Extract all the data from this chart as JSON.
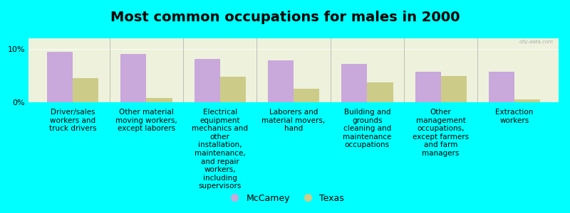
{
  "title": "Most common occupations for males in 2000",
  "background_color": "#00FFFF",
  "plot_bg_color": "#EEF2DC",
  "categories": [
    "Driver/sales\nworkers and\ntruck drivers",
    "Other material\nmoving workers,\nexcept laborers",
    "Electrical\nequipment\nmechanics and\nother\ninstallation,\nmaintenance,\nand repair\nworkers,\nincluding\nsupervisors",
    "Laborers and\nmaterial movers,\nhand",
    "Building and\ngrounds\ncleaning and\nmaintenance\noccupations",
    "Other\nmanagement\noccupations,\nexcept farmers\nand farm\nmanagers",
    "Extraction\nworkers"
  ],
  "mccamey_values": [
    9.5,
    9.0,
    8.2,
    7.8,
    7.2,
    5.8,
    5.8
  ],
  "texas_values": [
    4.5,
    0.8,
    4.8,
    2.5,
    3.8,
    5.0,
    0.5
  ],
  "mccamey_color": "#C9A8DC",
  "texas_color": "#CCCC88",
  "bar_width": 0.35,
  "ylim": [
    0,
    12
  ],
  "ytick_labels": [
    "0%",
    "10%"
  ],
  "legend_labels": [
    "McCamey",
    "Texas"
  ],
  "title_fontsize": 14,
  "label_fontsize": 7.5,
  "watermark": "city-data.com"
}
